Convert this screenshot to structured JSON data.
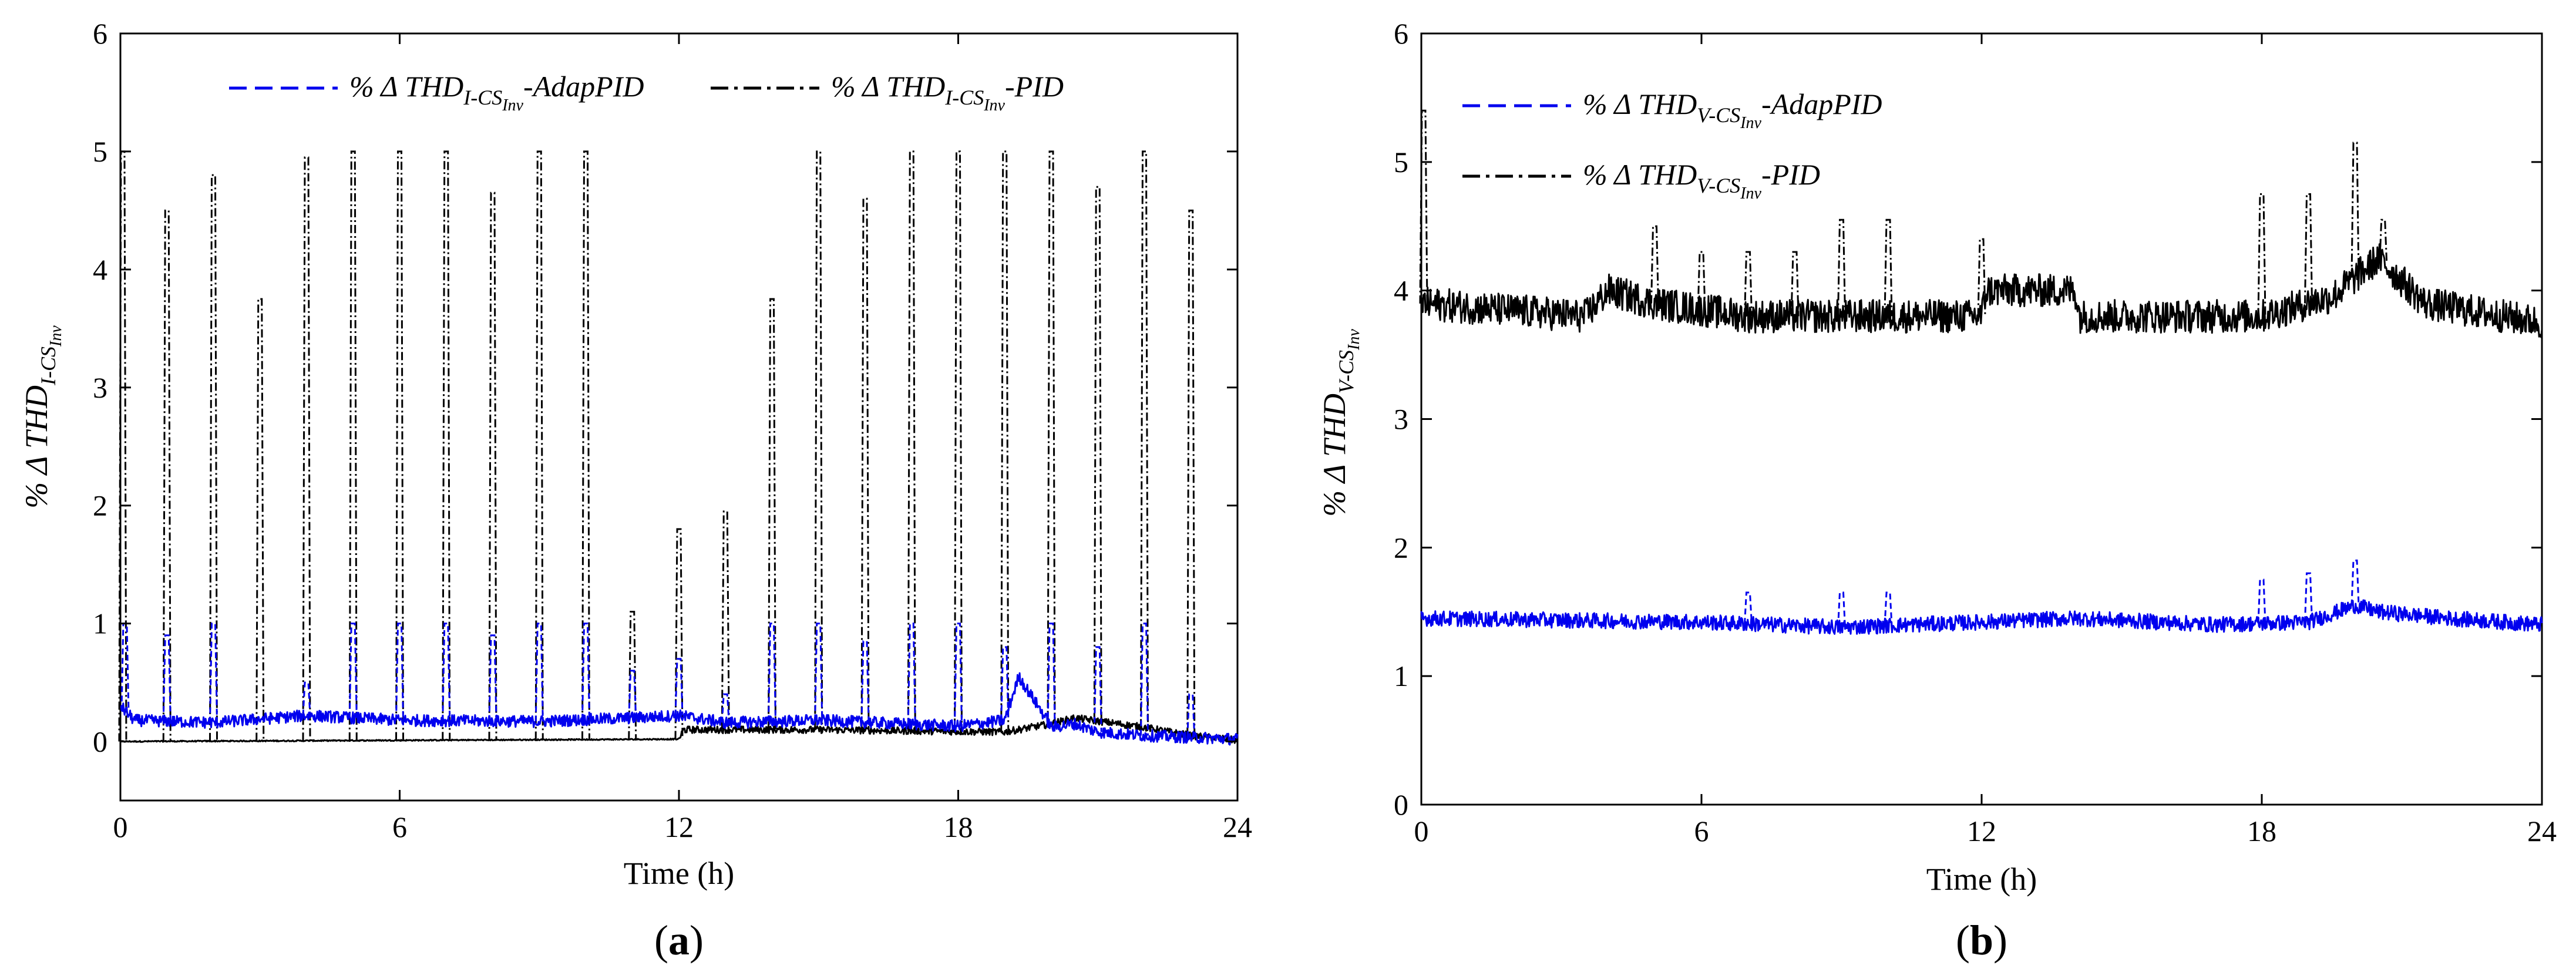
{
  "chart_data": [
    {
      "type": "line",
      "panel_label": "a",
      "xlabel": "Time (h)",
      "ylabel": {
        "prefix": "% Δ THD",
        "sub1": "I-CS",
        "sub2": "Inv"
      },
      "xlim": [
        0,
        24
      ],
      "ylim": [
        -0.5,
        6
      ],
      "xticks": [
        0,
        6,
        12,
        18,
        24
      ],
      "yticks": [
        0,
        1,
        2,
        3,
        4,
        5,
        6
      ],
      "legend": [
        {
          "name": "% Δ THD",
          "sub1": "I-CS",
          "sub2": "Inv",
          "suffix": "-AdapPID",
          "color": "#0000ee",
          "style": "dashed"
        },
        {
          "name": "% Δ THD",
          "sub1": "I-CS",
          "sub2": "Inv",
          "suffix": "-PID",
          "color": "#000000",
          "style": "dashdot"
        }
      ],
      "series": [
        {
          "name": "AdapPID",
          "color": "#0000ee",
          "baseline": [
            [
              0,
              0.3
            ],
            [
              0.3,
              0.18
            ],
            [
              2,
              0.16
            ],
            [
              4,
              0.22
            ],
            [
              6,
              0.18
            ],
            [
              9,
              0.17
            ],
            [
              11,
              0.2
            ],
            [
              12,
              0.22
            ],
            [
              13,
              0.16
            ],
            [
              15,
              0.18
            ],
            [
              18,
              0.13
            ],
            [
              19,
              0.18
            ],
            [
              19.3,
              0.55
            ],
            [
              19.8,
              0.25
            ],
            [
              20,
              0.12
            ],
            [
              20.5,
              0.15
            ],
            [
              21,
              0.08
            ],
            [
              22,
              0.05
            ],
            [
              24,
              0.02
            ]
          ],
          "noise": 0.05,
          "spikes": [
            [
              0.1,
              1.0
            ],
            [
              1,
              0.9
            ],
            [
              2,
              1.0
            ],
            [
              4,
              0.5
            ],
            [
              5,
              1.0
            ],
            [
              6,
              1.0
            ],
            [
              7,
              1.0
            ],
            [
              8,
              0.9
            ],
            [
              9,
              1.0
            ],
            [
              10,
              1.0
            ],
            [
              11,
              0.6
            ],
            [
              12,
              0.7
            ],
            [
              13,
              0.4
            ],
            [
              14,
              1.0
            ],
            [
              15,
              1.0
            ],
            [
              16,
              0.85
            ],
            [
              17,
              1.0
            ],
            [
              18,
              1.0
            ],
            [
              19,
              0.8
            ],
            [
              20,
              1.0
            ],
            [
              21,
              0.8
            ],
            [
              22,
              1.0
            ],
            [
              23,
              0.4
            ]
          ]
        },
        {
          "name": "PID",
          "color": "#000000",
          "baseline": [
            [
              0,
              0.0
            ],
            [
              12,
              0.02
            ],
            [
              12.1,
              0.1
            ],
            [
              15,
              0.1
            ],
            [
              19,
              0.08
            ],
            [
              20,
              0.15
            ],
            [
              20.5,
              0.2
            ],
            [
              22,
              0.12
            ],
            [
              23,
              0.05
            ],
            [
              24,
              0.01
            ]
          ],
          "noise": 0.03,
          "spikes": [
            [
              0.05,
              5.0
            ],
            [
              1,
              4.5
            ],
            [
              2,
              4.8
            ],
            [
              3,
              3.75
            ],
            [
              4,
              4.95
            ],
            [
              5,
              5.0
            ],
            [
              6,
              5.0
            ],
            [
              7,
              5.0
            ],
            [
              8,
              4.65
            ],
            [
              9,
              5.0
            ],
            [
              10,
              5.0
            ],
            [
              11,
              1.1
            ],
            [
              12,
              1.8
            ],
            [
              13,
              1.95
            ],
            [
              14,
              3.75
            ],
            [
              15,
              5.0
            ],
            [
              16,
              4.6
            ],
            [
              17,
              5.0
            ],
            [
              18,
              5.0
            ],
            [
              19,
              5.0
            ],
            [
              20,
              5.0
            ],
            [
              21,
              4.7
            ],
            [
              22,
              5.0
            ],
            [
              23,
              4.5
            ]
          ]
        }
      ]
    },
    {
      "type": "line",
      "panel_label": "b",
      "xlabel": "Time (h)",
      "ylabel": {
        "prefix": "% Δ THD",
        "sub1": "V-CS",
        "sub2": "Inv"
      },
      "xlim": [
        0,
        24
      ],
      "ylim": [
        0,
        6
      ],
      "xticks": [
        0,
        6,
        12,
        18,
        24
      ],
      "yticks": [
        0,
        1,
        2,
        3,
        4,
        5,
        6
      ],
      "legend": [
        {
          "name": "% Δ THD",
          "sub1": "V-CS",
          "sub2": "Inv",
          "suffix": "-AdapPID",
          "color": "#0000ee",
          "style": "dashed"
        },
        {
          "name": "% Δ THD",
          "sub1": "V-CS",
          "sub2": "Inv",
          "suffix": "-PID",
          "color": "#000000",
          "style": "dashdot"
        }
      ],
      "series": [
        {
          "name": "AdapPID",
          "color": "#0000ee",
          "baseline": [
            [
              0,
              1.45
            ],
            [
              6,
              1.42
            ],
            [
              9,
              1.38
            ],
            [
              12,
              1.42
            ],
            [
              14,
              1.45
            ],
            [
              17,
              1.4
            ],
            [
              19,
              1.42
            ],
            [
              20,
              1.55
            ],
            [
              20.5,
              1.5
            ],
            [
              22,
              1.45
            ],
            [
              24,
              1.4
            ]
          ],
          "noise": 0.06,
          "spikes": [
            [
              7,
              1.65
            ],
            [
              9,
              1.65
            ],
            [
              10,
              1.65
            ],
            [
              18,
              1.75
            ],
            [
              19,
              1.8
            ],
            [
              20,
              1.9
            ]
          ]
        },
        {
          "name": "PID",
          "color": "#000000",
          "baseline": [
            [
              0,
              3.9
            ],
            [
              3.5,
              3.8
            ],
            [
              4,
              4.0
            ],
            [
              5,
              3.9
            ],
            [
              7,
              3.8
            ],
            [
              12,
              3.8
            ],
            [
              12.1,
              4.0
            ],
            [
              14,
              4.0
            ],
            [
              14.1,
              3.8
            ],
            [
              18,
              3.8
            ],
            [
              19.5,
              3.95
            ],
            [
              20.5,
              4.25
            ],
            [
              21.5,
              3.9
            ],
            [
              24,
              3.75
            ]
          ],
          "noise": 0.13,
          "spikes": [
            [
              0.05,
              5.4
            ],
            [
              5,
              4.5
            ],
            [
              6,
              4.3
            ],
            [
              7,
              4.3
            ],
            [
              8,
              4.3
            ],
            [
              9,
              4.55
            ],
            [
              10,
              4.55
            ],
            [
              12,
              4.4
            ],
            [
              18,
              4.75
            ],
            [
              19,
              4.75
            ],
            [
              20,
              5.15
            ],
            [
              20.6,
              4.55
            ]
          ]
        }
      ]
    }
  ]
}
